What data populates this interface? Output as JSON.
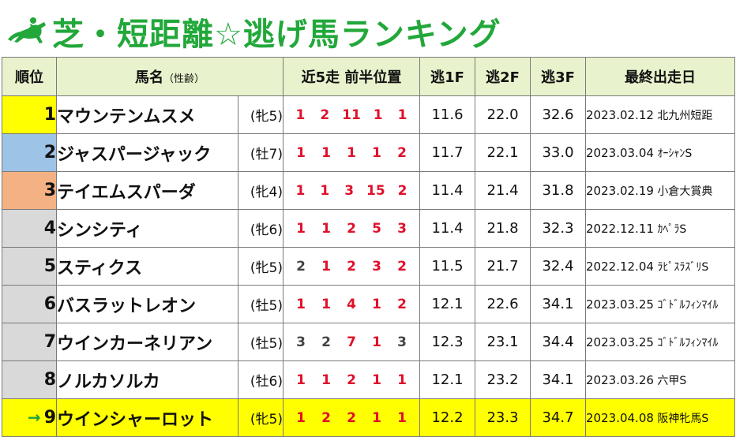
{
  "title": {
    "text": "芝・短距離☆逃げ馬ランキング",
    "icon": "horse-jockey-icon",
    "color": "#22a83a"
  },
  "header": {
    "rank": "順位",
    "name": "馬名",
    "name_sub": "（性齢）",
    "positions": "近5走 前半位置",
    "f1": "逃1F",
    "f2": "逃2F",
    "f3": "逃3F",
    "last": "最終出走日"
  },
  "colors": {
    "header_bg": "#e8f2cc",
    "rank1": "#ffff00",
    "rank2": "#9dc3e6",
    "rank3": "#f4b183",
    "rank_default": "#d9d9d9",
    "highlight_row": "#ffff00",
    "position_red": "#e0102a",
    "arrow_green": "#20a33a"
  },
  "rows": [
    {
      "rank": "1",
      "arrow": "",
      "name": "マウンテンムスメ",
      "sex": "(牝5)",
      "pos": [
        "1",
        "2",
        "11",
        "1",
        "1"
      ],
      "f1": "11.6",
      "f2": "22.0",
      "f3": "32.6",
      "date": "2023.02.12",
      "race": "北九州短距"
    },
    {
      "rank": "2",
      "arrow": "",
      "name": "ジャスパージャック",
      "sex": "(牡7)",
      "pos": [
        "1",
        "1",
        "1",
        "1",
        "2"
      ],
      "f1": "11.7",
      "f2": "22.1",
      "f3": "33.0",
      "date": "2023.03.04",
      "race": "ｵｰｼｬﾝS"
    },
    {
      "rank": "3",
      "arrow": "",
      "name": "テイエムスパーダ",
      "sex": "(牝4)",
      "pos": [
        "1",
        "1",
        "3",
        "15",
        "2"
      ],
      "f1": "11.4",
      "f2": "21.4",
      "f3": "31.8",
      "date": "2023.02.19",
      "race": "小倉大賞典"
    },
    {
      "rank": "4",
      "arrow": "",
      "name": "シンシティ",
      "sex": "(牝6)",
      "pos": [
        "1",
        "1",
        "2",
        "5",
        "3"
      ],
      "f1": "11.4",
      "f2": "21.8",
      "f3": "32.3",
      "date": "2022.12.11",
      "race": "ｶﾍﾟﾗS"
    },
    {
      "rank": "5",
      "arrow": "",
      "name": "スティクス",
      "sex": "(牝5)",
      "pos": [
        "2",
        "1",
        "2",
        "3",
        "2"
      ],
      "f1": "11.5",
      "f2": "21.7",
      "f3": "32.4",
      "date": "2022.12.04",
      "race": "ﾗﾋﾟｽﾗｽﾞﾘS"
    },
    {
      "rank": "6",
      "arrow": "",
      "name": "バスラットレオン",
      "sex": "(牡5)",
      "pos": [
        "1",
        "1",
        "4",
        "1",
        "2"
      ],
      "f1": "12.1",
      "f2": "22.6",
      "f3": "34.1",
      "date": "2023.03.25",
      "race": "ｺﾞﾄﾞﾙﾌｨﾝﾏｲﾙ"
    },
    {
      "rank": "7",
      "arrow": "",
      "name": "ウインカーネリアン",
      "sex": "(牡5)",
      "pos": [
        "3",
        "2",
        "7",
        "1",
        "3"
      ],
      "f1": "12.3",
      "f2": "23.1",
      "f3": "34.4",
      "date": "2023.03.25",
      "race": "ｺﾞﾄﾞﾙﾌｨﾝﾏｲﾙ"
    },
    {
      "rank": "8",
      "arrow": "",
      "name": "ノルカソルカ",
      "sex": "(牡6)",
      "pos": [
        "1",
        "1",
        "2",
        "1",
        "1"
      ],
      "f1": "12.1",
      "f2": "23.2",
      "f3": "34.1",
      "date": "2023.03.26",
      "race": "六甲S"
    },
    {
      "rank": "9",
      "arrow": "→",
      "name": "ウインシャーロット",
      "sex": "(牝5)",
      "pos": [
        "1",
        "2",
        "2",
        "1",
        "1"
      ],
      "f1": "12.2",
      "f2": "23.3",
      "f3": "34.7",
      "date": "2023.04.08",
      "race": "阪神牝馬S"
    }
  ],
  "red_flags": [
    [
      true,
      true,
      true,
      true,
      true
    ],
    [
      true,
      true,
      true,
      true,
      true
    ],
    [
      true,
      true,
      true,
      true,
      true
    ],
    [
      true,
      true,
      true,
      true,
      true
    ],
    [
      false,
      true,
      true,
      true,
      true
    ],
    [
      true,
      true,
      true,
      true,
      true
    ],
    [
      false,
      false,
      true,
      true,
      false
    ],
    [
      true,
      true,
      true,
      true,
      true
    ],
    [
      true,
      true,
      true,
      true,
      true
    ]
  ]
}
